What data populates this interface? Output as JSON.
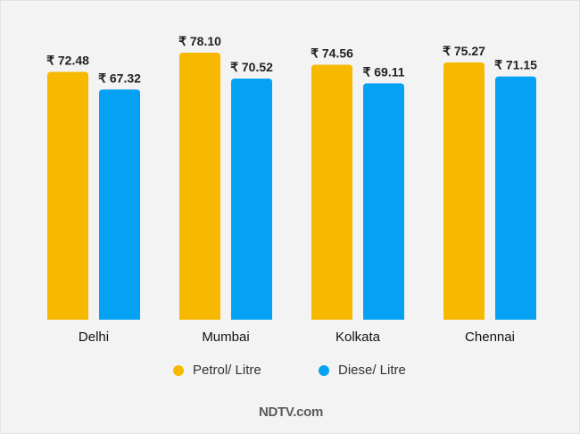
{
  "chart_data": {
    "type": "bar",
    "categories": [
      "Delhi",
      "Mumbai",
      "Kolkata",
      "Chennai"
    ],
    "series": [
      {
        "name": "Petrol/ Litre",
        "color": "#f7b800",
        "values": [
          72.48,
          78.1,
          74.56,
          75.27
        ],
        "labels": [
          "₹ 72.48",
          "₹ 78.10",
          "₹ 74.56",
          "₹ 75.27"
        ]
      },
      {
        "name": "Diese/ Litre",
        "color": "#05a2f4",
        "values": [
          67.32,
          70.52,
          69.11,
          71.15
        ],
        "labels": [
          "₹ 67.32",
          "₹ 70.52",
          "₹ 69.11",
          "₹ 71.15"
        ]
      }
    ],
    "ylim": [
      0,
      78.1
    ],
    "legend_position": "bottom",
    "grid": false
  },
  "brand": "NDTV.com"
}
